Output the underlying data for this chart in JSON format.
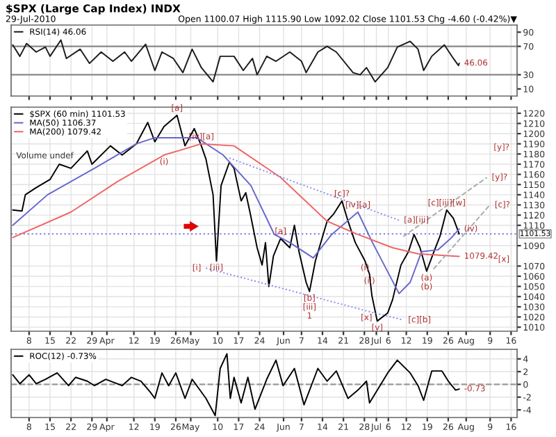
{
  "chart_data": [
    {
      "type": "line",
      "title": "$SPX (Large Cap Index) INDX",
      "subtitle": "29-Jul-2010",
      "annotations": [
        "Open 1100.07 High 1115.90 Low 1092.02 Close 1101.53 Chg -4.60 (-0.42%)▼",
        {
          "text": "46.06",
          "x": "2010-07-29T16:00",
          "y": 46.06
        }
      ],
      "xlim": [
        "2010-03-02",
        "2010-08-18"
      ],
      "ylim": [
        0,
        100
      ],
      "yticks": [
        10,
        30,
        70,
        90
      ],
      "xticks": [
        {
          "value": "2010-03-08",
          "label": null
        },
        {
          "value": "2010-03-15",
          "label": null
        },
        {
          "value": "2010-03-22",
          "label": null
        },
        {
          "value": "2010-03-29",
          "label": null
        },
        {
          "value": "2010-04-03",
          "label": null
        },
        {
          "value": "2010-04-12",
          "label": null
        },
        {
          "value": "2010-04-19",
          "label": null
        },
        {
          "value": "2010-04-26",
          "label": null
        },
        {
          "value": "2010-05-01",
          "label": null
        },
        {
          "value": "2010-05-10",
          "label": null
        },
        {
          "value": "2010-05-17",
          "label": null
        },
        {
          "value": "2010-05-24",
          "label": null
        },
        {
          "value": "2010-06-01",
          "label": null
        },
        {
          "value": "2010-06-07",
          "label": null
        },
        {
          "value": "2010-06-14",
          "label": null
        },
        {
          "value": "2010-06-21",
          "label": null
        },
        {
          "value": "2010-06-28",
          "label": null
        },
        {
          "value": "2010-07-02",
          "label": null
        },
        {
          "value": "2010-07-06",
          "label": null
        },
        {
          "value": "2010-07-12",
          "label": null
        },
        {
          "value": "2010-07-19",
          "label": null
        },
        {
          "value": "2010-07-26",
          "label": null
        },
        {
          "value": "2010-08-01",
          "label": null
        },
        {
          "value": "2010-08-09",
          "label": null
        },
        {
          "value": "2010-08-16",
          "label": null
        }
      ],
      "tick_labels": "y",
      "grid": "x",
      "legend": "top left",
      "ref_lines": [
        {
          "axis": "y",
          "value": 70,
          "color": "#888888"
        },
        {
          "axis": "y",
          "value": 30,
          "color": "#888888"
        }
      ],
      "series": [
        {
          "name": "RSI(14) 46.06",
          "color": "#1a1a1a",
          "x": [
            "2010-03-02T13:00",
            "2010-03-04T22:00",
            "2010-03-07T04:00",
            "2010-03-10T09:00",
            "2010-03-13T11:00",
            "2010-03-15T00:00",
            "2010-03-18T15:00",
            "2010-03-20T11:00",
            "2010-03-25T02:00",
            "2010-03-28T04:00",
            "2010-04-01T02:00",
            "2010-04-05T00:00",
            "2010-04-08T22:00",
            "2010-04-11T04:00",
            "2010-04-15T22:00",
            "2010-04-19T00:00",
            "2010-04-21T09:00",
            "2010-04-25T04:00",
            "2010-04-28T09:00",
            "2010-05-01T11:00",
            "2010-05-04T13:00",
            "2010-05-08T11:00",
            "2010-05-10T20:00",
            "2010-05-15T11:00",
            "2010-05-18T13:00",
            "2010-05-21T15:00",
            "2010-05-23T04:00",
            "2010-05-26T09:00",
            "2010-05-29T11:00",
            "2010-06-03T02:00",
            "2010-06-07T00:00",
            "2010-06-08T13:00",
            "2010-06-12T11:00",
            "2010-06-15T13:00",
            "2010-06-18T15:00",
            "2010-06-24T05:00",
            "2010-06-26T14:00",
            "2010-06-28T17:00",
            "2010-07-01T14:00",
            "2010-07-05T19:00",
            "2010-07-09T00:00",
            "2010-07-13T07:00",
            "2010-07-15T22:00",
            "2010-07-17T19:00",
            "2010-07-20T12:00",
            "2010-07-24T17:00",
            "2010-07-27T17:00",
            "2010-07-29T10:00",
            "2010-07-29T16:00"
          ],
          "values": [
            72,
            56,
            74,
            62,
            69,
            56,
            79,
            53,
            66,
            46,
            62,
            49,
            62,
            49,
            73,
            36,
            62,
            53,
            33,
            66,
            40,
            20,
            56,
            56,
            36,
            53,
            30,
            56,
            49,
            62,
            49,
            33,
            62,
            70,
            62,
            33,
            30,
            40,
            20,
            40,
            69,
            77,
            66,
            36,
            56,
            72,
            53,
            43,
            46.06
          ]
        }
      ]
    },
    {
      "type": "line",
      "annotations": [
        "Volume undef",
        "[y]?",
        "[x]",
        {
          "text": "1079.42",
          "x": "2010-07-29T16:00",
          "y": 1079.42
        },
        {
          "text": "[a]",
          "x": "2010-04-26T10:00",
          "y": 1218
        },
        {
          "text": "(i)",
          "x": "2010-04-22T02:00",
          "y": 1179
        },
        {
          "text": "[iv][a]",
          "x": "2010-05-04T13:00",
          "y": 1190
        },
        {
          "text": "[i]",
          "x": "2010-05-06T02:00",
          "y": 1068
        },
        {
          "text": "[iii]",
          "x": "2010-05-09T14:00",
          "y": 1075
        },
        {
          "text": "[a]",
          "x": "2010-05-31T00:00",
          "y": 1097
        },
        {
          "text": "[c]?",
          "x": "2010-06-20T12:00",
          "y": 1134
        },
        {
          "text": "[iv][a]",
          "x": "2010-06-25T20:00",
          "y": 1123
        },
        {
          "text": "[b]",
          "x": "2010-06-09T16:00",
          "y": 1045
        },
        {
          "text": "[iii]",
          "x": "2010-06-09T16:00",
          "y": 1045
        },
        {
          "text": "1",
          "x": "2010-06-09T16:00",
          "y": 1045
        },
        {
          "text": "(i)",
          "x": "2010-06-28T05:00",
          "y": 1075
        },
        {
          "text": "(ii)",
          "x": "2010-06-29T17:00",
          "y": 1062
        },
        {
          "text": "[x]",
          "x": "2010-06-28T17:00",
          "y": 1026
        },
        {
          "text": "[v]",
          "x": "2010-07-02T07:00",
          "y": 1016
        },
        {
          "text": "[c][b]",
          "x": "2010-07-11T00:00",
          "y": 1017
        },
        {
          "text": "[a][iii]",
          "x": "2010-07-09T14:00",
          "y": 1115
        },
        {
          "text": "[c][iii][w]",
          "x": "2010-07-25T12:00",
          "y": 1125
        },
        {
          "text": "[y]?",
          "x": "2010-08-07T22:00",
          "y": 1157
        },
        {
          "text": "[c]?",
          "x": "2010-08-08T22:00",
          "y": 1130
        },
        {
          "text": "(iv)",
          "x": "2010-07-29T16:00",
          "y": 1106.37
        },
        {
          "text": "(a)",
          "x": "2010-07-18T19:00",
          "y": 1065
        },
        {
          "text": "(b)",
          "x": "2010-07-18T19:00",
          "y": 1065
        }
      ],
      "xlim": [
        "2010-03-02",
        "2010-08-18"
      ],
      "ylim": [
        1006,
        1226
      ],
      "yticks": [
        1010,
        1020,
        1030,
        1040,
        1050,
        1060,
        1070,
        1090,
        1110,
        1120,
        1130,
        1140,
        1150,
        1160,
        1170,
        1180,
        1190,
        1200,
        1210,
        1220
      ],
      "xticks": [
        {
          "value": "2010-03-08",
          "label": "8"
        },
        {
          "value": "2010-03-15",
          "label": "15"
        },
        {
          "value": "2010-03-22",
          "label": "22"
        },
        {
          "value": "2010-03-29",
          "label": "29"
        },
        {
          "value": "2010-04-03",
          "label": "Apr"
        },
        {
          "value": "2010-04-12",
          "label": "12"
        },
        {
          "value": "2010-04-19",
          "label": "19"
        },
        {
          "value": "2010-04-26",
          "label": "26"
        },
        {
          "value": "2010-05-01",
          "label": "May"
        },
        {
          "value": "2010-05-10",
          "label": "10"
        },
        {
          "value": "2010-05-17",
          "label": "17"
        },
        {
          "value": "2010-05-24",
          "label": "24"
        },
        {
          "value": "2010-06-01",
          "label": "Jun"
        },
        {
          "value": "2010-06-07",
          "label": "7"
        },
        {
          "value": "2010-06-14",
          "label": "14"
        },
        {
          "value": "2010-06-21",
          "label": "21"
        },
        {
          "value": "2010-06-28",
          "label": "28"
        },
        {
          "value": "2010-07-02",
          "label": "Jul"
        },
        {
          "value": "2010-07-06",
          "label": "6"
        },
        {
          "value": "2010-07-12",
          "label": "12"
        },
        {
          "value": "2010-07-19",
          "label": "19"
        },
        {
          "value": "2010-07-26",
          "label": "26"
        },
        {
          "value": "2010-08-01",
          "label": "Aug"
        },
        {
          "value": "2010-08-09",
          "label": "9"
        },
        {
          "value": "2010-08-16",
          "label": "16"
        }
      ],
      "grid": true,
      "legend": "top left",
      "ref_lines": [
        {
          "axis": "y",
          "value": 1101.53,
          "label": "1101.53",
          "color": "#8888ee",
          "line_style": "dotted"
        }
      ],
      "series": [
        {
          "name": "$SPX (60 min) 1101.53",
          "color": "#000000",
          "x": [
            "2010-03-02T13:00",
            "2010-03-05T15:00",
            "2010-03-06T18:00",
            "2010-03-10T09:00",
            "2010-03-15T00:00",
            "2010-03-18T02:00",
            "2010-03-22T00:00",
            "2010-03-27T11:00",
            "2010-03-29T00:00",
            "2010-04-04T04:00",
            "2010-04-08T02:00",
            "2010-04-12T20:00",
            "2010-04-16T15:00",
            "2010-04-19T00:00",
            "2010-04-22T02:00",
            "2010-04-26T10:00",
            "2010-04-29T02:00",
            "2010-05-02T04:00",
            "2010-05-04T13:00",
            "2010-05-06T02:00",
            "2010-05-08T11:00",
            "2010-05-09T14:00",
            "2010-05-11T03:00",
            "2010-05-13T22:00",
            "2010-05-15T11:00",
            "2010-05-17T20:00",
            "2010-05-19T09:00",
            "2010-05-20T22:00",
            "2010-05-23T04:00",
            "2010-05-24T20:00",
            "2010-05-25T23:00",
            "2010-05-27T02:00",
            "2010-05-28T15:00",
            "2010-05-31T00:00",
            "2010-06-03T02:00",
            "2010-06-04T15:00",
            "2010-06-06T04:00",
            "2010-06-08T13:00",
            "2010-06-09T16:00",
            "2010-06-11T15:00",
            "2010-06-15T13:00",
            "2010-06-17T17:00",
            "2010-06-20T12:00",
            "2010-06-22T13:00",
            "2010-06-24T23:00",
            "2010-06-28T05:00",
            "2010-06-29T17:00",
            "2010-06-30T12:00",
            "2010-07-02T07:00",
            "2010-07-05T19:00",
            "2010-07-07T10:00",
            "2010-07-10T05:00",
            "2010-07-12T17:00",
            "2010-07-14T14:00",
            "2010-07-16T14:00",
            "2010-07-18T19:00",
            "2010-07-21T05:00",
            "2010-07-23T05:00",
            "2010-07-25T12:00",
            "2010-07-27T17:00",
            "2010-07-29T16:00"
          ],
          "values": [
            1125,
            1124,
            1140,
            1147,
            1155,
            1170,
            1166,
            1183,
            1170,
            1188,
            1179,
            1190,
            1211,
            1192,
            1207,
            1218,
            1188,
            1205,
            1188,
            1175,
            1140,
            1075,
            1149,
            1172,
            1166,
            1134,
            1142,
            1121,
            1088,
            1071,
            1093,
            1050,
            1080,
            1097,
            1088,
            1110,
            1084,
            1054,
            1045,
            1075,
            1114,
            1121,
            1134,
            1114,
            1093,
            1075,
            1062,
            1041,
            1016,
            1024,
            1037,
            1071,
            1084,
            1101,
            1088,
            1065,
            1084,
            1099,
            1125,
            1117,
            1101.53
          ]
        },
        {
          "name": "MA(50) 1106.37",
          "color": "#6666cc",
          "x": [
            "2010-03-02T13:00",
            "2010-03-14T04:00",
            "2010-03-29T20:00",
            "2010-04-12T20:00",
            "2010-04-19T00:00",
            "2010-05-03T00:00",
            "2010-05-11T20:00",
            "2010-05-21T02:00",
            "2010-05-28T22:00",
            "2010-06-03T02:00",
            "2010-06-10T22:00",
            "2010-06-17T02:00",
            "2010-06-25T20:00",
            "2010-06-30T17:00",
            "2010-07-09T14:00",
            "2010-07-13T07:00",
            "2010-07-17T02:00",
            "2010-07-22T14:00",
            "2010-07-26T19:00",
            "2010-07-29T16:00"
          ],
          "values": [
            1110,
            1140,
            1166,
            1190,
            1196,
            1196,
            1179,
            1149,
            1101,
            1093,
            1078,
            1101,
            1123,
            1093,
            1043,
            1054,
            1084,
            1086,
            1097,
            1106.37
          ]
        },
        {
          "name": "MA(200) 1079.42",
          "color": "#ee6666",
          "x": [
            "2010-03-02T13:00",
            "2010-03-22T00:00",
            "2010-04-06T13:00",
            "2010-04-22T02:00",
            "2010-05-04T13:00",
            "2010-05-15T11:00",
            "2010-05-31T00:00",
            "2010-06-15T13:00",
            "2010-06-25T20:00",
            "2010-07-07T10:00",
            "2010-07-15T22:00",
            "2010-07-29T16:00"
          ],
          "values": [
            1098,
            1123,
            1153,
            1179,
            1190,
            1188,
            1157,
            1114,
            1101,
            1088,
            1082,
            1079.42
          ]
        },
        {
          "color": "#8888ee",
          "line_style": "dotted",
          "x": [
            "2010-05-06T02:00",
            "2010-06-28T17:00",
            "2010-07-11T00:00"
          ],
          "values": [
            1068,
            1026,
            1017
          ]
        },
        {
          "color": "#8888ee",
          "line_style": "dotted",
          "x": [
            "2010-05-13T22:00",
            "2010-07-09T14:00"
          ],
          "values": [
            1176,
            1115
          ]
        },
        {
          "color": "#aaaaaa",
          "line_style": "dashed",
          "x": [
            "2010-07-11T00:00",
            "2010-08-07T22:00"
          ],
          "values": [
            1099,
            1157
          ]
        },
        {
          "color": "#aaaaaa",
          "line_style": "dashed",
          "x": [
            "2010-07-21T02:00",
            "2010-08-08T22:00"
          ],
          "values": [
            1067,
            1130
          ]
        }
      ]
    },
    {
      "type": "line",
      "annotations": [
        {
          "text": "-0.73",
          "x": "2010-07-29T16:00",
          "y": -0.73
        }
      ],
      "xlim": [
        "2010-03-02",
        "2010-08-18"
      ],
      "ylim": [
        -5.2,
        5.5
      ],
      "yticks": [
        -4,
        -2,
        0,
        2,
        4
      ],
      "xticks": [
        {
          "value": "2010-03-08",
          "label": "8"
        },
        {
          "value": "2010-03-15",
          "label": "15"
        },
        {
          "value": "2010-03-22",
          "label": "22"
        },
        {
          "value": "2010-03-29",
          "label": "29"
        },
        {
          "value": "2010-04-03",
          "label": "Apr"
        },
        {
          "value": "2010-04-12",
          "label": "12"
        },
        {
          "value": "2010-04-19",
          "label": "19"
        },
        {
          "value": "2010-04-26",
          "label": "26"
        },
        {
          "value": "2010-05-01",
          "label": "May"
        },
        {
          "value": "2010-05-10",
          "label": "10"
        },
        {
          "value": "2010-05-17",
          "label": "17"
        },
        {
          "value": "2010-05-24",
          "label": "24"
        },
        {
          "value": "2010-06-01",
          "label": "Jun"
        },
        {
          "value": "2010-06-07",
          "label": "7"
        },
        {
          "value": "2010-06-14",
          "label": "14"
        },
        {
          "value": "2010-06-21",
          "label": "21"
        },
        {
          "value": "2010-06-28",
          "label": "28"
        },
        {
          "value": "2010-07-02",
          "label": "Jul"
        },
        {
          "value": "2010-07-06",
          "label": "6"
        },
        {
          "value": "2010-07-12",
          "label": "12"
        },
        {
          "value": "2010-07-19",
          "label": "19"
        },
        {
          "value": "2010-07-26",
          "label": "26"
        },
        {
          "value": "2010-08-01",
          "label": "Aug"
        },
        {
          "value": "2010-08-09",
          "label": "9"
        },
        {
          "value": "2010-08-16",
          "label": "16"
        }
      ],
      "grid": true,
      "legend": "top left",
      "ref_lines": [
        {
          "axis": "y",
          "value": 0,
          "color": "#999999",
          "line_style": "dashed"
        }
      ],
      "series": [
        {
          "name": "ROC(12) -0.73%",
          "color": "#000000",
          "x": [
            "2010-03-02T13:00",
            "2010-03-04T22:00",
            "2010-03-08T00:00",
            "2010-03-10T09:00",
            "2010-03-13T11:00",
            "2010-03-17T09:00",
            "2010-03-21T04:00",
            "2010-03-23T13:00",
            "2010-03-27T11:00",
            "2010-03-29T20:00",
            "2010-04-02T15:00",
            "2010-04-08T02:00",
            "2010-04-11T04:00",
            "2010-04-14T09:00",
            "2010-04-17T11:00",
            "2010-04-19T00:00",
            "2010-04-21T09:00",
            "2010-04-23T15:00",
            "2010-04-26T00:00",
            "2010-04-29T02:00",
            "2010-05-01T11:00",
            "2010-05-06T02:00",
            "2010-05-09T04:00",
            "2010-05-10T20:00",
            "2010-05-13T02:00",
            "2010-05-14T05:00",
            "2010-05-15T11:00",
            "2010-05-17T20:00",
            "2010-05-20T02:00",
            "2010-05-22T11:00",
            "2010-05-26T09:00",
            "2010-05-29T11:00",
            "2010-05-31T20:00",
            "2010-06-04T15:00",
            "2010-06-07T20:00",
            "2010-06-12T11:00",
            "2010-06-15T13:00",
            "2010-06-18T15:00",
            "2010-06-22T13:00",
            "2010-06-25T20:00",
            "2010-06-28T17:00",
            "2010-06-29T17:00",
            "2010-07-05T19:00",
            "2010-07-09T00:00",
            "2010-07-13T07:00",
            "2010-07-15T22:00",
            "2010-07-17T19:00",
            "2010-07-20T12:00",
            "2010-07-23T22:00",
            "2010-07-26T01:00",
            "2010-07-28T11:00",
            "2010-07-29T16:00"
          ],
          "values": [
            1.5,
            0.1,
            1.5,
            0.1,
            0.8,
            1.8,
            -0.2,
            1.1,
            0.5,
            -0.2,
            0.8,
            -0.2,
            1.1,
            0.5,
            -1.2,
            -2.2,
            1.8,
            -0.2,
            1.8,
            -2.2,
            0.8,
            -2.2,
            -4.9,
            2.5,
            4.8,
            -2.2,
            1.1,
            -2.9,
            1.1,
            -3.9,
            0.8,
            3.8,
            -0.2,
            2.5,
            -3.2,
            2.5,
            0.5,
            2.1,
            -2.2,
            -0.9,
            0.5,
            -2.9,
            1.8,
            3.8,
            1.8,
            -0.2,
            -2.5,
            2.1,
            2.1,
            0.5,
            -0.9,
            -0.73
          ]
        }
      ]
    }
  ]
}
